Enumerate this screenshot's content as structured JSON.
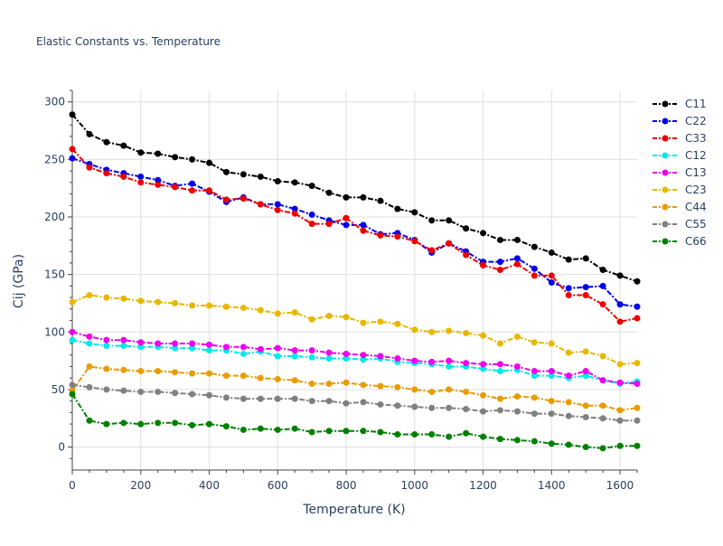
{
  "chart_data": {
    "type": "line",
    "title": "Elastic Constants vs. Temperature",
    "xlabel": "Temperature (K)",
    "ylabel": "Cij (GPa)",
    "xlim": [
      0,
      1650
    ],
    "ylim": [
      -20,
      310
    ],
    "x_ticks": [
      0,
      200,
      400,
      600,
      800,
      1000,
      1200,
      1400,
      1600
    ],
    "y_ticks": [
      0,
      50,
      100,
      150,
      200,
      250,
      300
    ],
    "grid": true,
    "legend_position": "right",
    "line_style": "dash-dot",
    "x": [
      0,
      50,
      100,
      150,
      200,
      250,
      300,
      350,
      400,
      450,
      500,
      550,
      600,
      650,
      700,
      750,
      800,
      850,
      900,
      950,
      1000,
      1050,
      1100,
      1150,
      1200,
      1250,
      1300,
      1350,
      1400,
      1450,
      1500,
      1550,
      1600,
      1650
    ],
    "series": [
      {
        "name": "C11",
        "color": "#000000",
        "values": [
          289,
          272,
          265,
          262,
          256,
          255,
          252,
          250,
          247,
          239,
          237,
          235,
          231,
          230,
          227,
          221,
          217,
          217,
          214,
          207,
          204,
          197,
          197,
          190,
          186,
          180,
          180,
          174,
          169,
          163,
          164,
          154,
          149,
          144
        ]
      },
      {
        "name": "C22",
        "color": "#0000ee",
        "values": [
          251,
          246,
          241,
          238,
          235,
          232,
          227,
          229,
          222,
          213,
          217,
          211,
          211,
          207,
          202,
          197,
          193,
          193,
          185,
          186,
          180,
          169,
          177,
          170,
          161,
          161,
          164,
          155,
          143,
          138,
          139,
          140,
          124,
          122
        ]
      },
      {
        "name": "C33",
        "color": "#ee0000",
        "values": [
          259,
          243,
          238,
          235,
          230,
          228,
          226,
          223,
          223,
          215,
          216,
          211,
          206,
          203,
          194,
          194,
          199,
          188,
          184,
          183,
          179,
          171,
          177,
          167,
          158,
          154,
          159,
          149,
          149,
          132,
          132,
          124,
          109,
          112
        ]
      },
      {
        "name": "C12",
        "color": "#00e8e8",
        "values": [
          93,
          90,
          88,
          88,
          87,
          87,
          86,
          86,
          84,
          84,
          81,
          83,
          79,
          79,
          78,
          77,
          77,
          76,
          77,
          74,
          73,
          72,
          70,
          70,
          68,
          66,
          67,
          62,
          62,
          60,
          62,
          58,
          55,
          57
        ]
      },
      {
        "name": "C13",
        "color": "#ee00ee",
        "values": [
          100,
          96,
          93,
          93,
          91,
          90,
          90,
          90,
          89,
          87,
          87,
          85,
          86,
          84,
          84,
          82,
          81,
          80,
          79,
          77,
          75,
          74,
          75,
          73,
          72,
          72,
          70,
          66,
          66,
          62,
          66,
          58,
          56,
          55
        ]
      },
      {
        "name": "C23",
        "color": "#e8b800",
        "values": [
          126,
          132,
          130,
          129,
          127,
          126,
          125,
          123,
          123,
          122,
          121,
          119,
          116,
          117,
          111,
          114,
          113,
          108,
          109,
          107,
          102,
          100,
          101,
          99,
          97,
          90,
          96,
          91,
          90,
          82,
          83,
          79,
          72,
          73
        ]
      },
      {
        "name": "C44",
        "color": "#e89c00",
        "values": [
          49,
          70,
          68,
          67,
          66,
          66,
          65,
          64,
          64,
          62,
          62,
          60,
          59,
          58,
          55,
          55,
          56,
          54,
          53,
          52,
          50,
          48,
          50,
          48,
          45,
          42,
          44,
          43,
          40,
          39,
          36,
          36,
          32,
          34
        ]
      },
      {
        "name": "C55",
        "color": "#808080",
        "values": [
          54,
          52,
          50,
          49,
          48,
          48,
          47,
          46,
          45,
          43,
          42,
          42,
          42,
          42,
          40,
          40,
          38,
          39,
          37,
          36,
          35,
          34,
          34,
          33,
          31,
          32,
          31,
          29,
          29,
          27,
          26,
          25,
          23,
          23
        ]
      },
      {
        "name": "C66",
        "color": "#008000",
        "values": [
          46,
          23,
          20,
          21,
          20,
          21,
          21,
          19,
          20,
          18,
          15,
          16,
          15,
          16,
          13,
          14,
          14,
          14,
          13,
          11,
          11,
          11,
          9,
          12,
          9,
          7,
          6,
          5,
          3,
          2,
          0,
          -1,
          1,
          1
        ]
      }
    ]
  }
}
